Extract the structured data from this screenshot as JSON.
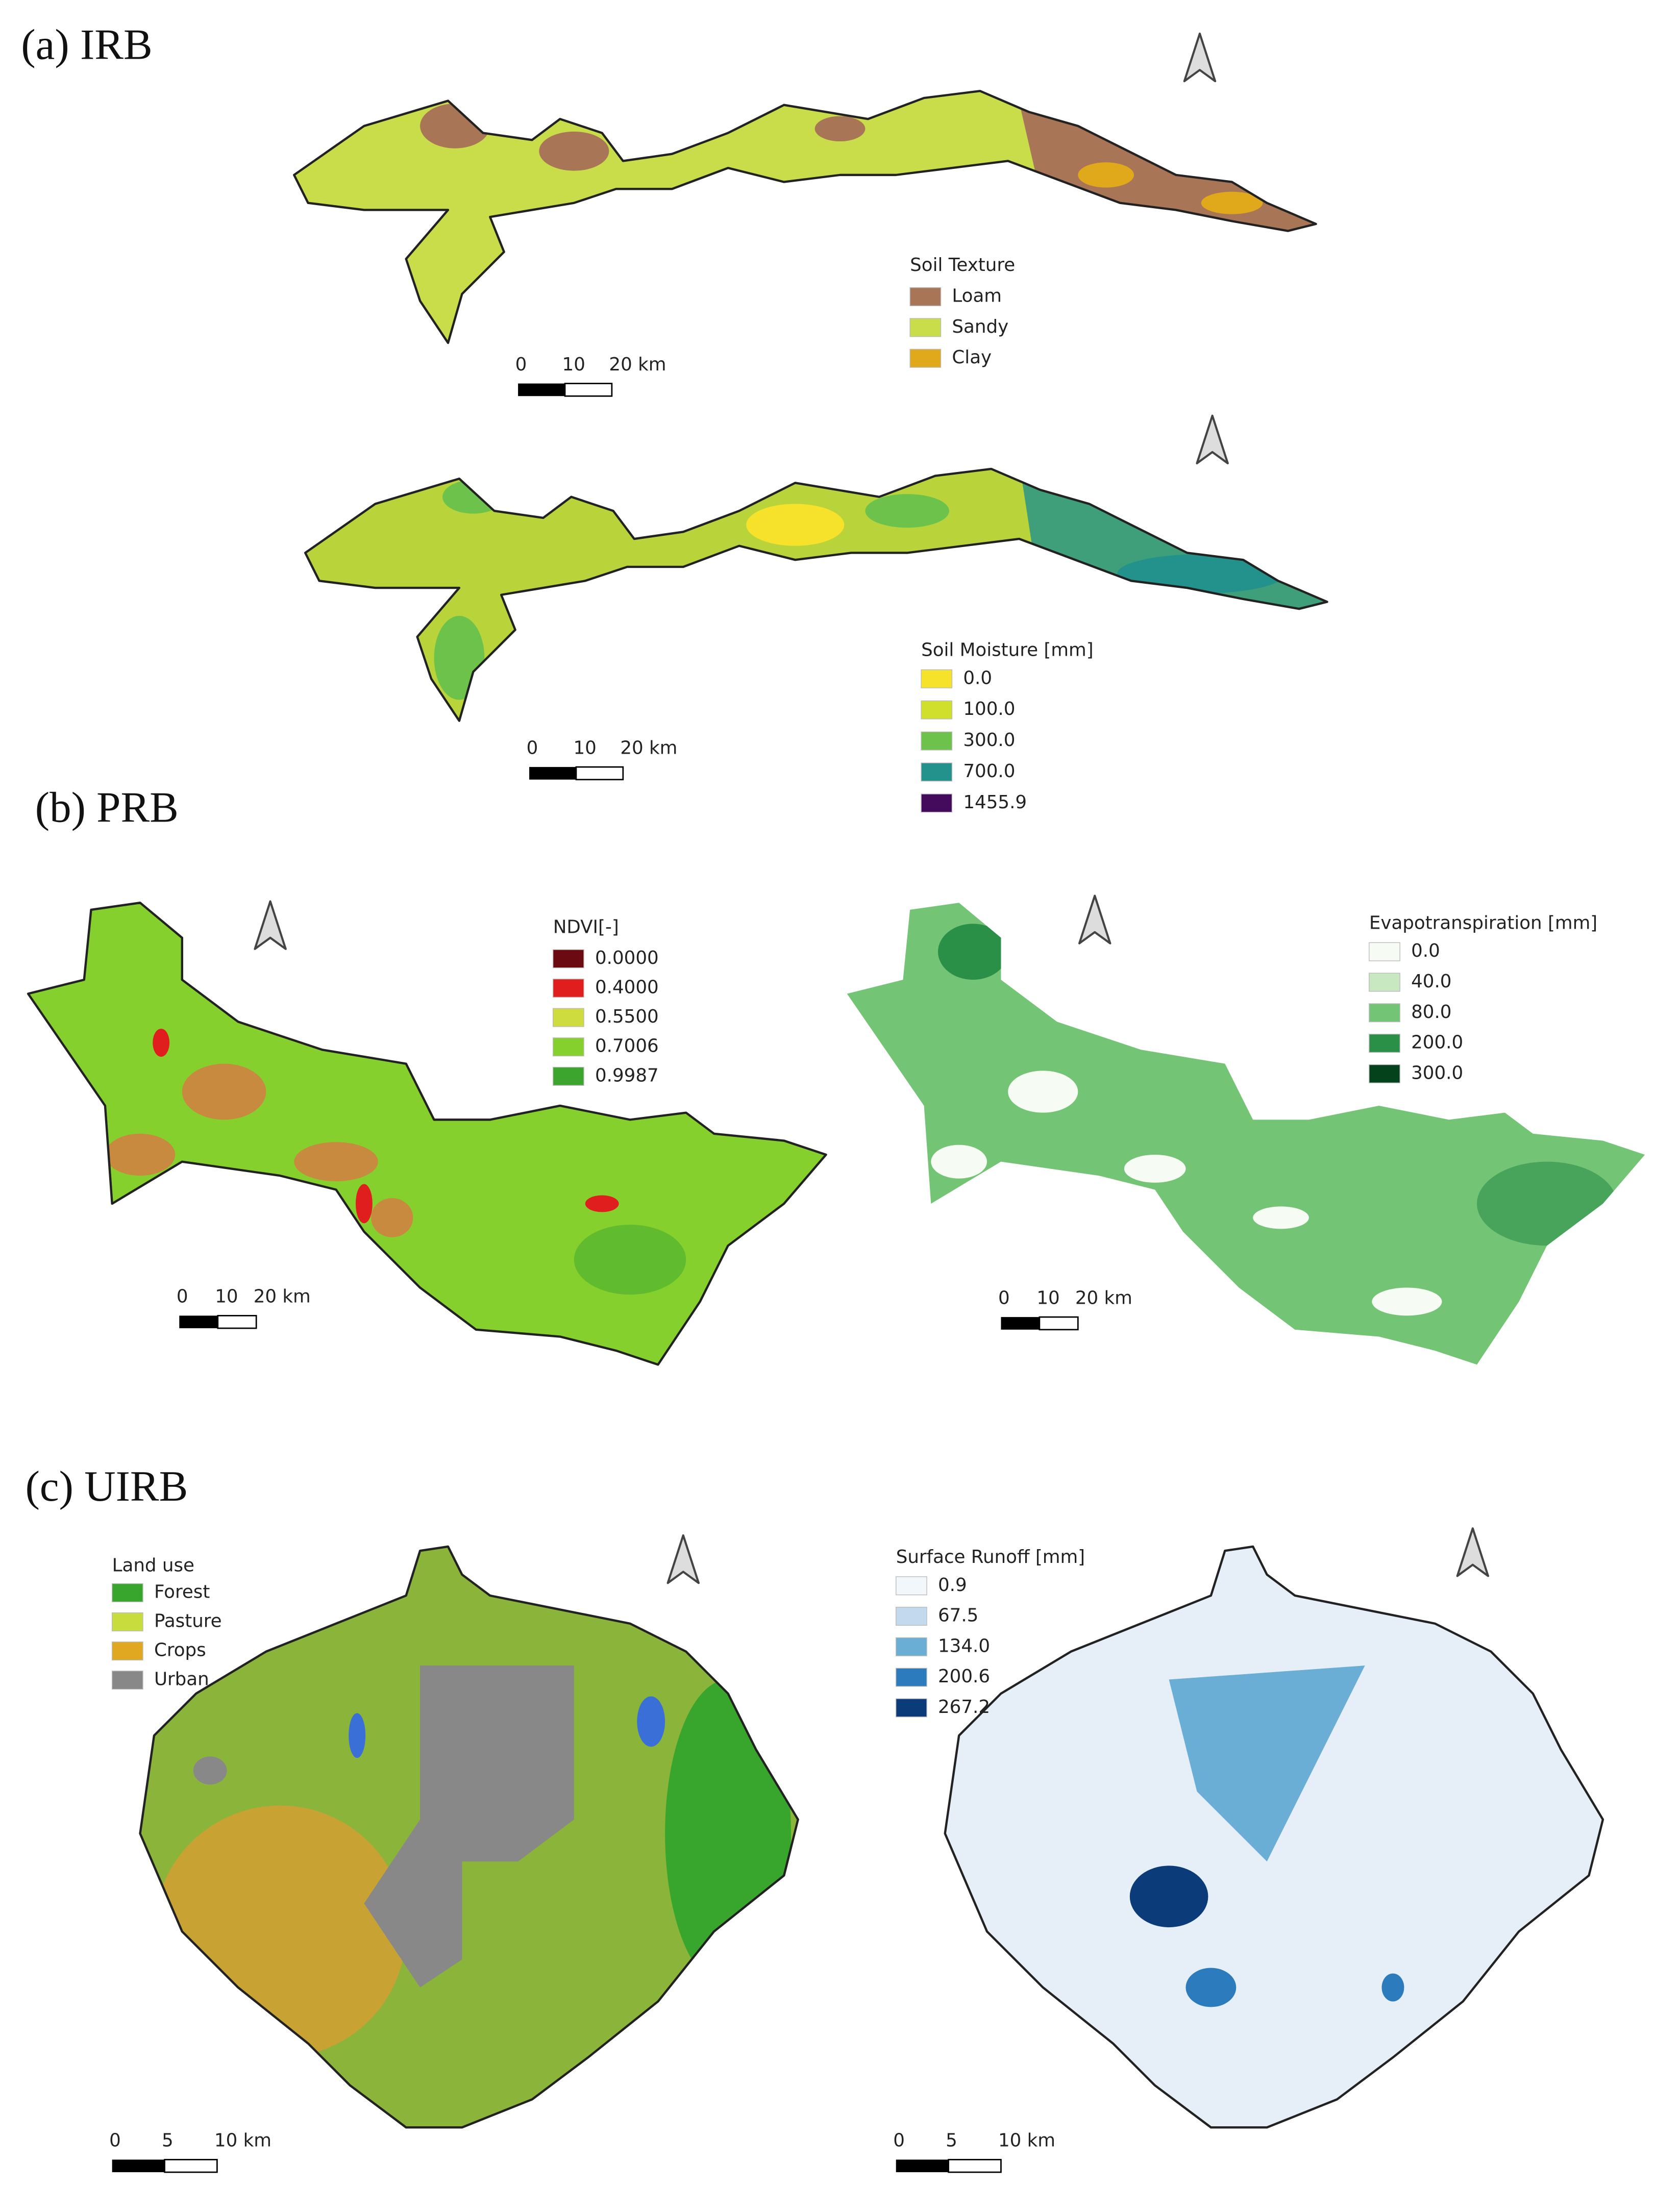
{
  "panels": [
    {
      "label": "(a) IRB",
      "maps": [
        {
          "legend": {
            "title": "Soil Texture",
            "items": [
              {
                "label": "Loam",
                "color": "#a87556"
              },
              {
                "label": "Sandy",
                "color": "#c9dc4a"
              },
              {
                "label": "Clay",
                "color": "#e0a91c"
              }
            ]
          },
          "scale": [
            "0",
            "10",
            "20 km"
          ]
        },
        {
          "legend": {
            "title": "Soil Moisture [mm]",
            "items": [
              {
                "label": "0.0",
                "color": "#f6e22a"
              },
              {
                "label": "100.0",
                "color": "#cfdf2c"
              },
              {
                "label": "300.0",
                "color": "#6cc24a"
              },
              {
                "label": "700.0",
                "color": "#23928c"
              },
              {
                "label": "1455.9",
                "color": "#440a5c"
              }
            ]
          },
          "scale": [
            "0",
            "10",
            "20 km"
          ]
        }
      ]
    },
    {
      "label": "(b) PRB",
      "maps": [
        {
          "legend": {
            "title": "NDVI[-]",
            "items": [
              {
                "label": "0.0000",
                "color": "#6b0a10"
              },
              {
                "label": "0.4000",
                "color": "#e01e1e"
              },
              {
                "label": "0.5500",
                "color": "#cfdc3e"
              },
              {
                "label": "0.7006",
                "color": "#86d02e"
              },
              {
                "label": "0.9987",
                "color": "#3ca52e"
              }
            ]
          },
          "scale": [
            "0",
            "10",
            "20 km"
          ]
        },
        {
          "legend": {
            "title": "Evapotranspiration [mm]",
            "items": [
              {
                "label": "0.0",
                "color": "#f6fbf4"
              },
              {
                "label": "40.0",
                "color": "#c7e8c0"
              },
              {
                "label": "80.0",
                "color": "#74c476"
              },
              {
                "label": "200.0",
                "color": "#2a8f47"
              },
              {
                "label": "300.0",
                "color": "#04421b"
              }
            ]
          },
          "scale": [
            "0",
            "10",
            "20 km"
          ]
        }
      ]
    },
    {
      "label": "(c) UIRB",
      "maps": [
        {
          "legend": {
            "title": "Land use",
            "items": [
              {
                "label": "Forest",
                "color": "#38a52c"
              },
              {
                "label": "Pasture",
                "color": "#c8dc3e"
              },
              {
                "label": "Crops",
                "color": "#dfa820"
              },
              {
                "label": "Urban",
                "color": "#888888"
              }
            ]
          },
          "scale": [
            "0",
            "5",
            "10 km"
          ]
        },
        {
          "legend": {
            "title": "Surface Runoff [mm]",
            "items": [
              {
                "label": "0.9",
                "color": "#f2f7fc"
              },
              {
                "label": "67.5",
                "color": "#c2d9ee"
              },
              {
                "label": "134.0",
                "color": "#6aaed6"
              },
              {
                "label": "200.6",
                "color": "#2c7bbd"
              },
              {
                "label": "267.2",
                "color": "#0b3b78"
              }
            ]
          },
          "scale": [
            "0",
            "5",
            "10 km"
          ]
        }
      ]
    }
  ]
}
